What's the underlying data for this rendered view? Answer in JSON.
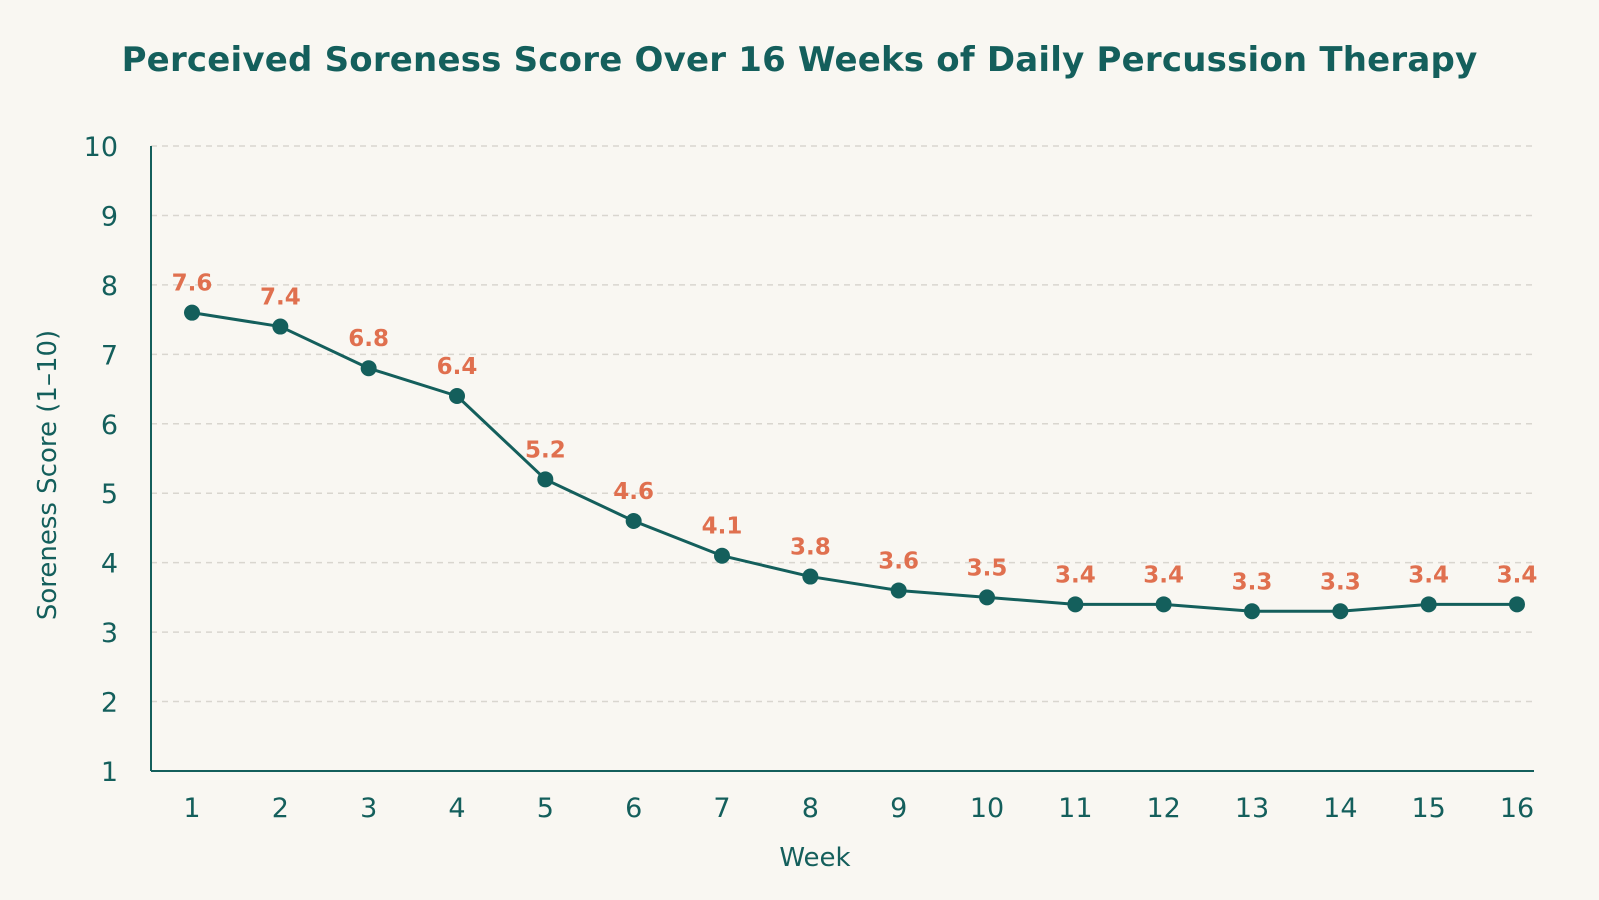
{
  "chart_data": {
    "type": "line",
    "title": "Perceived Soreness Score Over 16 Weeks of Daily Percussion Therapy",
    "xlabel": "Week",
    "ylabel": "Soreness Score (1–10)",
    "categories": [
      "1",
      "2",
      "3",
      "4",
      "5",
      "6",
      "7",
      "8",
      "9",
      "10",
      "11",
      "12",
      "13",
      "14",
      "15",
      "16"
    ],
    "values": [
      7.6,
      7.4,
      6.8,
      6.4,
      5.2,
      4.6,
      4.1,
      3.8,
      3.6,
      3.5,
      3.4,
      3.4,
      3.3,
      3.3,
      3.4,
      3.4
    ],
    "data_labels": [
      "7.6",
      "7.4",
      "6.8",
      "6.4",
      "5.2",
      "4.6",
      "4.1",
      "3.8",
      "3.6",
      "3.5",
      "3.4",
      "3.4",
      "3.3",
      "3.3",
      "3.4",
      "3.4"
    ],
    "yticks": [
      "1",
      "2",
      "3",
      "4",
      "5",
      "6",
      "7",
      "8",
      "9",
      "10"
    ],
    "ylim": [
      1,
      10
    ],
    "grid": "horizontal dashed",
    "colors": {
      "line": "#145f5c",
      "marker": "#145f5c",
      "data_label": "#e0704f",
      "axis": "#145f5c",
      "grid": "#d9d6cf",
      "background": "#f9f7f2"
    }
  }
}
